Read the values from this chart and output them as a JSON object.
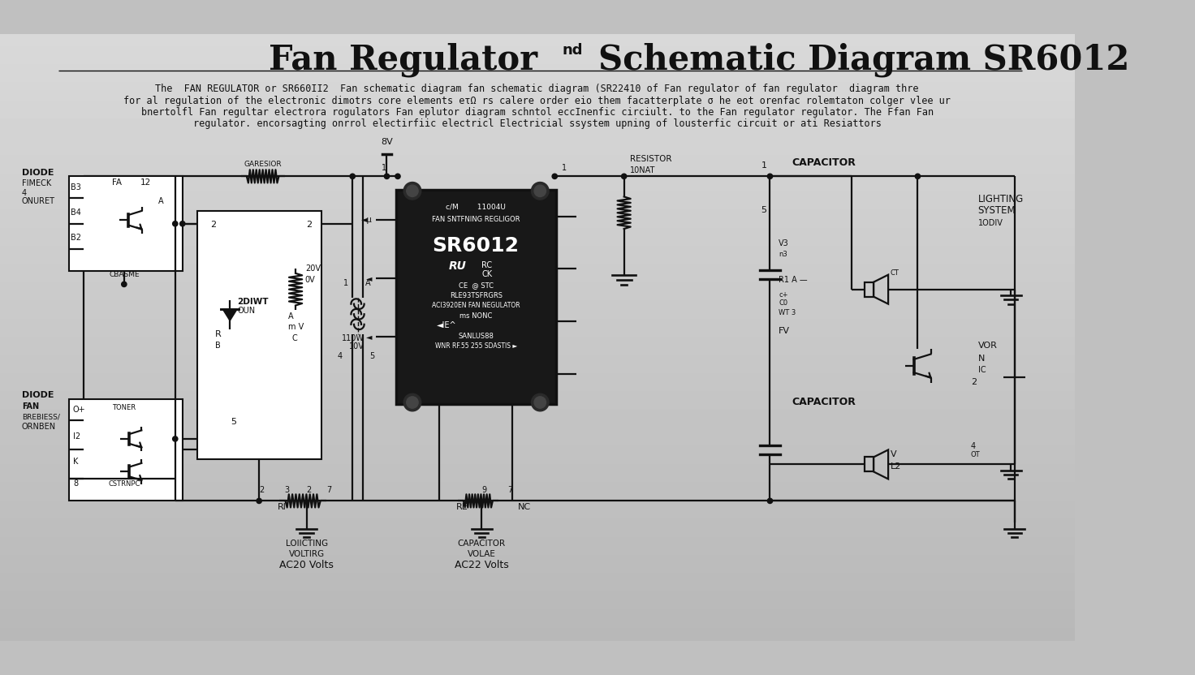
{
  "title_left": "Fan Regulator",
  "title_super": "nd",
  "title_right": "Schematic Diagram SR6012",
  "desc_lines": [
    "The  FAN REGULATOR or SR660II2  Fan schematic diagram fan schematic diagram (SR22410 of Fan regulator of fan regulator  diagram thre",
    "for al regulation of the electronic dimotrs core elements eτΩ rs calere order eio them facatterplate σ he eot orenfac rolemtaton colger vlee ur",
    "bnertolfl Fan regultar electrora rogulators Fan eplutor diagram schntol eccInenfic circiult. to the Fan regulator regulator. The Ffan Fan",
    "regulator. encorsagting onrrol electirfiic electricl Electricial ssystem upning of lousterfic circuit or ati Resiattors"
  ],
  "sc": "#111111",
  "bg_top": "#b8b8b8",
  "bg_bot": "#d8d8d8"
}
